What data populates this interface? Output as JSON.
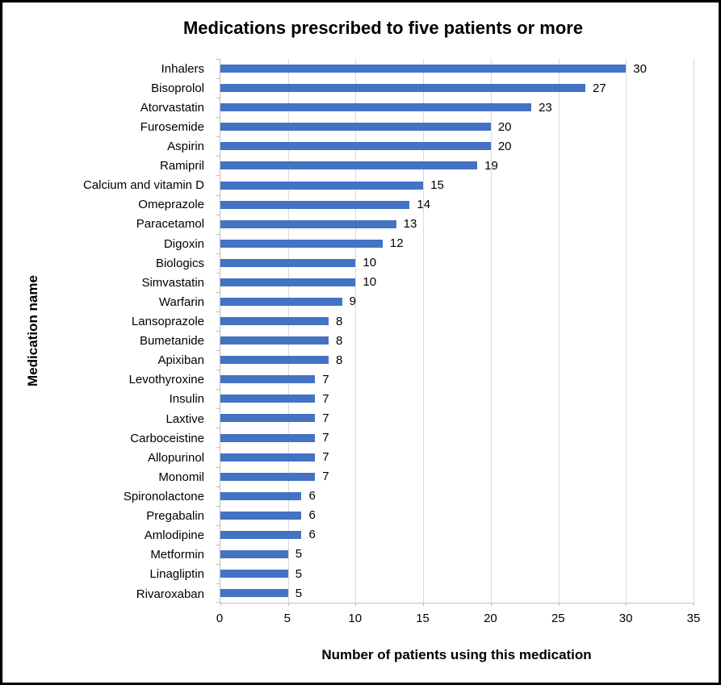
{
  "window": {
    "background_color": "#ffffff",
    "border_color": "#000000"
  },
  "chart_data": {
    "type": "bar",
    "orientation": "horizontal",
    "title": "Medications prescribed to five patients or more",
    "xlabel": "Number of patients using this medication",
    "ylabel": "Medication name",
    "categories": [
      "Inhalers",
      "Bisoprolol",
      "Atorvastatin",
      "Furosemide",
      "Aspirin",
      "Ramipril",
      "Calcium and vitamin D",
      "Omeprazole",
      "Paracetamol",
      "Digoxin",
      "Biologics",
      "Simvastatin",
      "Warfarin",
      "Lansoprazole",
      "Bumetanide",
      "Apixiban",
      "Levothyroxine",
      "Insulin",
      "Laxtive",
      "Carboceistine",
      "Allopurinol",
      "Monomil",
      "Spironolactone",
      "Pregabalin",
      "Amlodipine",
      "Metformin",
      "Linagliptin",
      "Rivaroxaban"
    ],
    "values": [
      30,
      27,
      23,
      20,
      20,
      19,
      15,
      14,
      13,
      12,
      10,
      10,
      9,
      8,
      8,
      8,
      7,
      7,
      7,
      7,
      7,
      7,
      6,
      6,
      6,
      5,
      5,
      5
    ],
    "data_labels": true,
    "xlim": [
      0,
      35
    ],
    "x_ticks": [
      0,
      5,
      10,
      15,
      20,
      25,
      30,
      35
    ],
    "grid": "vertical",
    "legend": "none",
    "bar_color": "#4472C4",
    "gridline_color": "#D9D9D9",
    "axis_line_color": "#BFBFBF",
    "text_color": "#000000"
  }
}
